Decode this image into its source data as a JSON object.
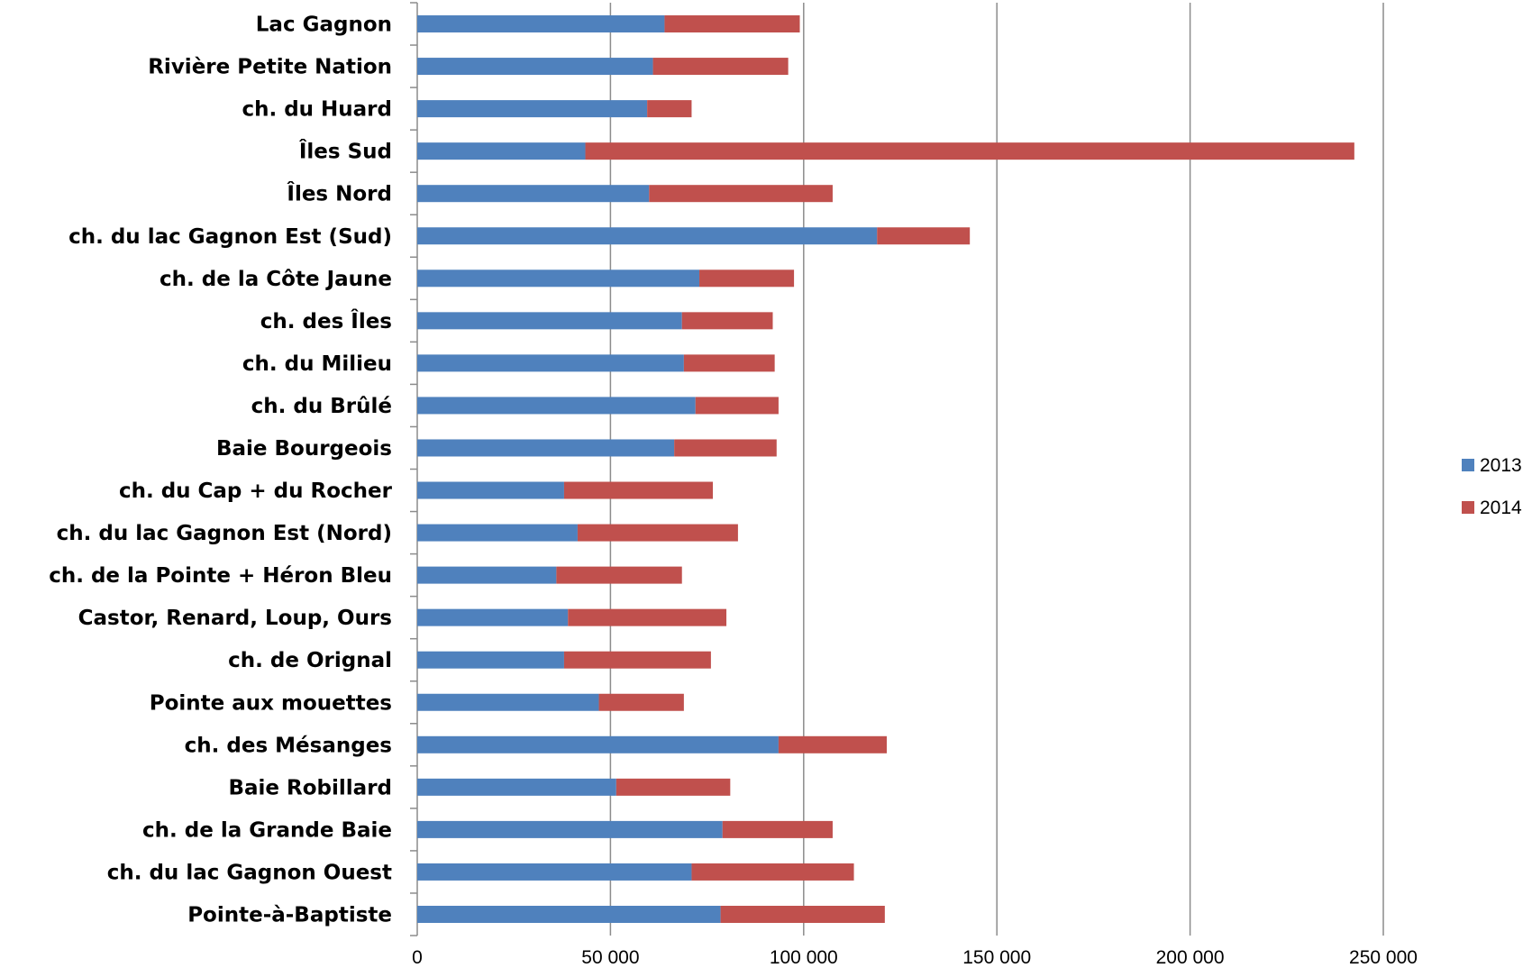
{
  "chart_data": {
    "type": "bar",
    "orientation": "horizontal",
    "stacked": true,
    "title": "",
    "xlabel": "",
    "ylabel": "",
    "xlim": [
      0,
      250000
    ],
    "x_ticks": [
      0,
      50000,
      100000,
      150000,
      200000,
      250000
    ],
    "x_tick_labels": [
      "0",
      "50 000",
      "100 000",
      "150 000",
      "200 000",
      "250 000"
    ],
    "grid": "vertical",
    "legend_position": "right",
    "categories": [
      "Lac Gagnon",
      "Rivière Petite Nation",
      "ch. du Huard",
      "Îles Sud",
      "Îles Nord",
      "ch. du lac Gagnon Est (Sud)",
      "ch. de la Côte Jaune",
      "ch. des Îles",
      "ch. du Milieu",
      "ch. du Brûlé",
      "Baie Bourgeois",
      "ch. du Cap + du Rocher",
      "ch. du lac Gagnon Est (Nord)",
      "ch. de la Pointe + Héron Bleu",
      "Castor, Renard, Loup, Ours",
      "ch. de Orignal",
      "Pointe aux mouettes",
      "ch. des Mésanges",
      "Baie Robillard",
      "ch. de la Grande Baie",
      "ch. du lac Gagnon Ouest",
      "Pointe-à-Baptiste"
    ],
    "series": [
      {
        "name": "2013",
        "color": "#4f81bd",
        "values": [
          64000,
          61000,
          59500,
          43500,
          60000,
          119000,
          73000,
          68500,
          69000,
          72000,
          66500,
          38000,
          41500,
          36000,
          39000,
          38000,
          47000,
          93500,
          51500,
          79000,
          71000,
          78500
        ]
      },
      {
        "name": "2014",
        "color": "#c0504d",
        "values": [
          35000,
          35000,
          11500,
          199000,
          47500,
          24000,
          24500,
          23500,
          23500,
          21500,
          26500,
          38500,
          41500,
          32500,
          41000,
          38000,
          22000,
          28000,
          29500,
          28500,
          42000,
          42500
        ]
      }
    ]
  }
}
